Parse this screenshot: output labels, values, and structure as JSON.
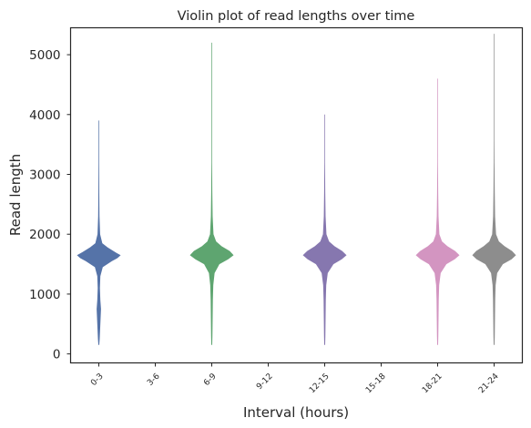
{
  "chart_data": {
    "type": "violin",
    "title": "Violin plot of read lengths over time",
    "xlabel": "Interval (hours)",
    "ylabel": "Read length",
    "categories": [
      "0-3",
      "3-6",
      "6-9",
      "9-12",
      "12-15",
      "15-18",
      "18-21",
      "21-24"
    ],
    "ylim": [
      -150,
      5450
    ],
    "yticks": [
      0,
      1000,
      2000,
      3000,
      4000,
      5000
    ],
    "grid": false,
    "series": [
      {
        "category": "0-3",
        "color": "#4c6ba3",
        "min": 150,
        "max": 3900,
        "profile": [
          [
            150,
            0.02
          ],
          [
            250,
            0.04
          ],
          [
            500,
            0.07
          ],
          [
            750,
            0.1
          ],
          [
            900,
            0.07
          ],
          [
            1100,
            0.05
          ],
          [
            1300,
            0.07
          ],
          [
            1450,
            0.18
          ],
          [
            1550,
            0.6
          ],
          [
            1600,
            0.85
          ],
          [
            1650,
            1.0
          ],
          [
            1700,
            0.75
          ],
          [
            1780,
            0.4
          ],
          [
            1850,
            0.16
          ],
          [
            2000,
            0.06
          ],
          [
            2300,
            0.03
          ],
          [
            2700,
            0.02
          ],
          [
            3200,
            0.015
          ],
          [
            3500,
            0.012
          ],
          [
            3700,
            0.012
          ],
          [
            3900,
            0.0
          ]
        ]
      },
      {
        "category": "6-9",
        "color": "#55a068",
        "min": 150,
        "max": 5200,
        "profile": [
          [
            150,
            0.02
          ],
          [
            300,
            0.03
          ],
          [
            600,
            0.04
          ],
          [
            900,
            0.05
          ],
          [
            1150,
            0.07
          ],
          [
            1350,
            0.13
          ],
          [
            1500,
            0.35
          ],
          [
            1580,
            0.75
          ],
          [
            1650,
            1.0
          ],
          [
            1720,
            0.82
          ],
          [
            1800,
            0.45
          ],
          [
            1880,
            0.2
          ],
          [
            2000,
            0.08
          ],
          [
            2300,
            0.04
          ],
          [
            2700,
            0.025
          ],
          [
            3200,
            0.015
          ],
          [
            3600,
            0.012
          ],
          [
            3800,
            0.01
          ],
          [
            4500,
            0.004
          ],
          [
            5200,
            0.0
          ]
        ]
      },
      {
        "category": "12-15",
        "color": "#8070ab",
        "min": 150,
        "max": 4000,
        "profile": [
          [
            150,
            0.02
          ],
          [
            300,
            0.03
          ],
          [
            600,
            0.04
          ],
          [
            900,
            0.05
          ],
          [
            1150,
            0.07
          ],
          [
            1350,
            0.14
          ],
          [
            1500,
            0.4
          ],
          [
            1580,
            0.78
          ],
          [
            1650,
            1.0
          ],
          [
            1720,
            0.8
          ],
          [
            1800,
            0.45
          ],
          [
            1880,
            0.2
          ],
          [
            2000,
            0.08
          ],
          [
            2300,
            0.04
          ],
          [
            2700,
            0.025
          ],
          [
            3200,
            0.015
          ],
          [
            3600,
            0.012
          ],
          [
            3800,
            0.01
          ],
          [
            4000,
            0.0
          ]
        ]
      },
      {
        "category": "18-21",
        "color": "#d18fbe",
        "min": 150,
        "max": 4600,
        "profile": [
          [
            150,
            0.02
          ],
          [
            300,
            0.03
          ],
          [
            600,
            0.04
          ],
          [
            900,
            0.05
          ],
          [
            1150,
            0.07
          ],
          [
            1350,
            0.14
          ],
          [
            1500,
            0.4
          ],
          [
            1580,
            0.78
          ],
          [
            1650,
            1.0
          ],
          [
            1720,
            0.8
          ],
          [
            1800,
            0.45
          ],
          [
            1880,
            0.2
          ],
          [
            2000,
            0.08
          ],
          [
            2300,
            0.04
          ],
          [
            2700,
            0.025
          ],
          [
            3200,
            0.015
          ],
          [
            3600,
            0.012
          ],
          [
            3800,
            0.01
          ],
          [
            4600,
            0.0
          ]
        ]
      },
      {
        "category": "21-24",
        "color": "#878787",
        "min": 150,
        "max": 5350,
        "profile": [
          [
            150,
            0.02
          ],
          [
            300,
            0.03
          ],
          [
            600,
            0.04
          ],
          [
            900,
            0.05
          ],
          [
            1150,
            0.07
          ],
          [
            1350,
            0.14
          ],
          [
            1500,
            0.4
          ],
          [
            1580,
            0.8
          ],
          [
            1650,
            1.0
          ],
          [
            1720,
            0.82
          ],
          [
            1800,
            0.48
          ],
          [
            1880,
            0.22
          ],
          [
            2000,
            0.09
          ],
          [
            2300,
            0.045
          ],
          [
            2700,
            0.03
          ],
          [
            3200,
            0.018
          ],
          [
            3600,
            0.014
          ],
          [
            3800,
            0.012
          ],
          [
            4500,
            0.004
          ],
          [
            5350,
            0.0
          ]
        ]
      }
    ]
  }
}
